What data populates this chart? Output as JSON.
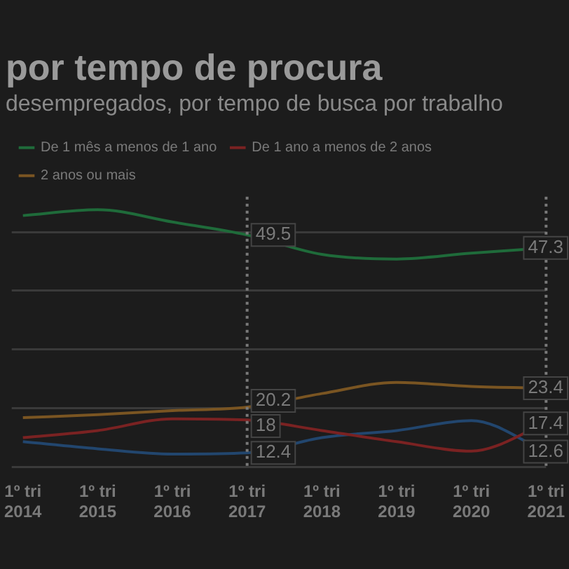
{
  "chart_data": {
    "type": "line",
    "title": "por tempo de procura",
    "subtitle": "desempregados, por tempo de busca por trabalho",
    "categories": [
      "1º tri 2014",
      "1º tri 2015",
      "1º tri 2016",
      "1º tri 2017",
      "1º tri 2018",
      "1º tri 2019",
      "1º tri 2020",
      "1º tri 2021"
    ],
    "series": [
      {
        "name": "De 1 mês a menos de 1 ano",
        "color": "#1f6b3a",
        "values": [
          52.8,
          53.8,
          51.7,
          49.5,
          46.2,
          45.4,
          46.4,
          47.3
        ],
        "value_labels": [
          null,
          null,
          null,
          "49.5",
          null,
          null,
          null,
          "47.3"
        ]
      },
      {
        "name": "De 1 ano a menos de 2 anos",
        "color": "#7a2222",
        "values": [
          15.0,
          16.2,
          18.2,
          18,
          16.2,
          14.3,
          12.7,
          17.4
        ],
        "value_labels": [
          null,
          null,
          null,
          "18",
          null,
          null,
          null,
          "17.4"
        ]
      },
      {
        "name": "2 anos ou mais",
        "color": "#7a5522",
        "values": [
          18.4,
          18.9,
          19.6,
          20.2,
          22.5,
          24.4,
          23.7,
          23.4
        ],
        "value_labels": [
          null,
          null,
          null,
          "20.2",
          null,
          null,
          null,
          "23.4"
        ]
      },
      {
        "color": "#22466e",
        "values": [
          14.3,
          13.1,
          12.2,
          12.4,
          15.0,
          16.2,
          17.9,
          12.6
        ],
        "value_labels": [
          null,
          null,
          null,
          "12.4",
          null,
          null,
          null,
          "12.6"
        ]
      }
    ],
    "ylim": [
      10,
      56
    ],
    "yticks": [
      {
        "value": 10,
        "label": null
      },
      {
        "value": 20,
        "label": null
      },
      {
        "value": 30,
        "label": null
      },
      {
        "value": 40,
        "label": null
      },
      {
        "value": 50,
        "label": null
      }
    ],
    "tick_labels": "x",
    "grid": "y",
    "legend": "top",
    "marker": "none",
    "line_style": "solid",
    "ref_lines": [
      {
        "axis": "x",
        "value": "1º tri 2017",
        "line_style": "dotted"
      },
      {
        "axis": "x",
        "value": "1º tri 2021",
        "line_style": "dotted"
      }
    ]
  }
}
